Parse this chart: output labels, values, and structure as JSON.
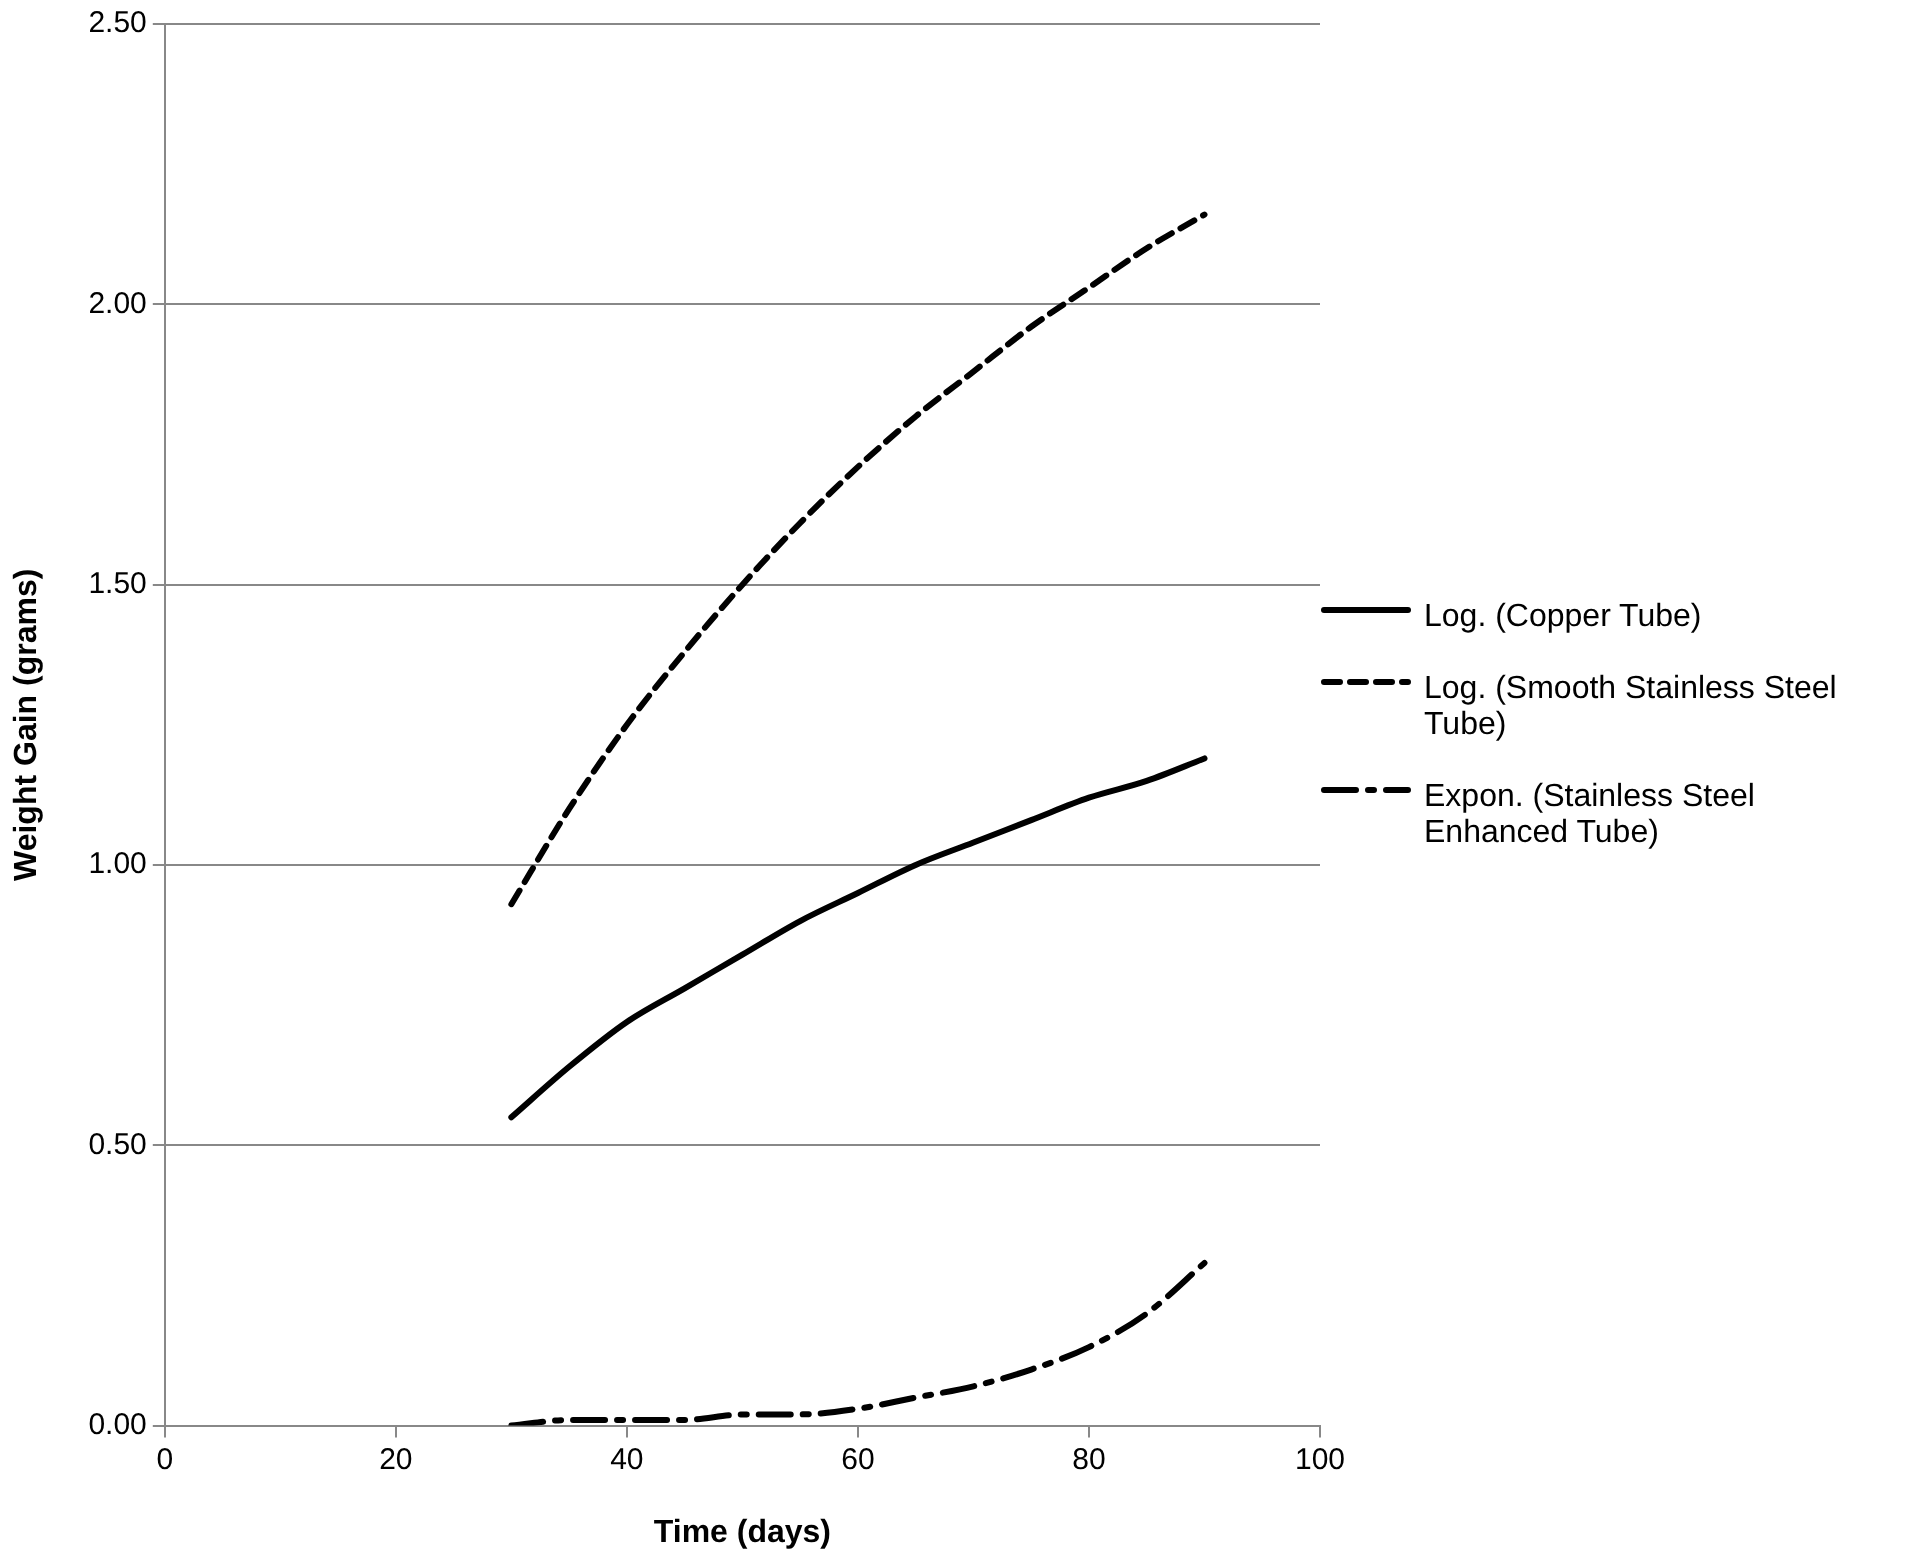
{
  "chart_data": {
    "type": "line",
    "xlabel": "Time (days)",
    "ylabel": "Weight Gain (grams)",
    "xlim": [
      0,
      100
    ],
    "xticks": [
      0,
      20,
      40,
      60,
      80,
      100
    ],
    "ylim": [
      0,
      2.5
    ],
    "yticks": [
      {
        "value": 0,
        "label": "0.00"
      },
      {
        "value": 0.5,
        "label": "0.50"
      },
      {
        "value": 1,
        "label": "1.00"
      },
      {
        "value": 1.5,
        "label": "1.50"
      },
      {
        "value": 2,
        "label": "2.00"
      },
      {
        "value": 2.5,
        "label": "2.50"
      }
    ],
    "x": [
      30,
      35,
      40,
      45,
      50,
      55,
      60,
      65,
      70,
      75,
      80,
      85,
      90
    ],
    "series": [
      {
        "name": "Log. (Copper Tube)",
        "color": "#000000",
        "line_style": "solid",
        "values": [
          0.55,
          0.64,
          0.72,
          0.78,
          0.84,
          0.9,
          0.95,
          1.0,
          1.04,
          1.08,
          1.12,
          1.15,
          1.19
        ]
      },
      {
        "name": "Log. (Smooth Stainless Steel Tube)",
        "color": "#000000",
        "line_style": "dashed",
        "values": [
          0.93,
          1.1,
          1.25,
          1.38,
          1.5,
          1.61,
          1.71,
          1.8,
          1.88,
          1.96,
          2.03,
          2.1,
          2.16
        ]
      },
      {
        "name": "Expon. (Stainless Steel Enhanced Tube)",
        "color": "#000000",
        "line_style": "dashdot",
        "values": [
          0.0,
          0.01,
          0.01,
          0.01,
          0.02,
          0.02,
          0.03,
          0.05,
          0.07,
          0.1,
          0.14,
          0.2,
          0.29
        ]
      }
    ],
    "grid": "y",
    "legend": "right",
    "marker": "none"
  }
}
